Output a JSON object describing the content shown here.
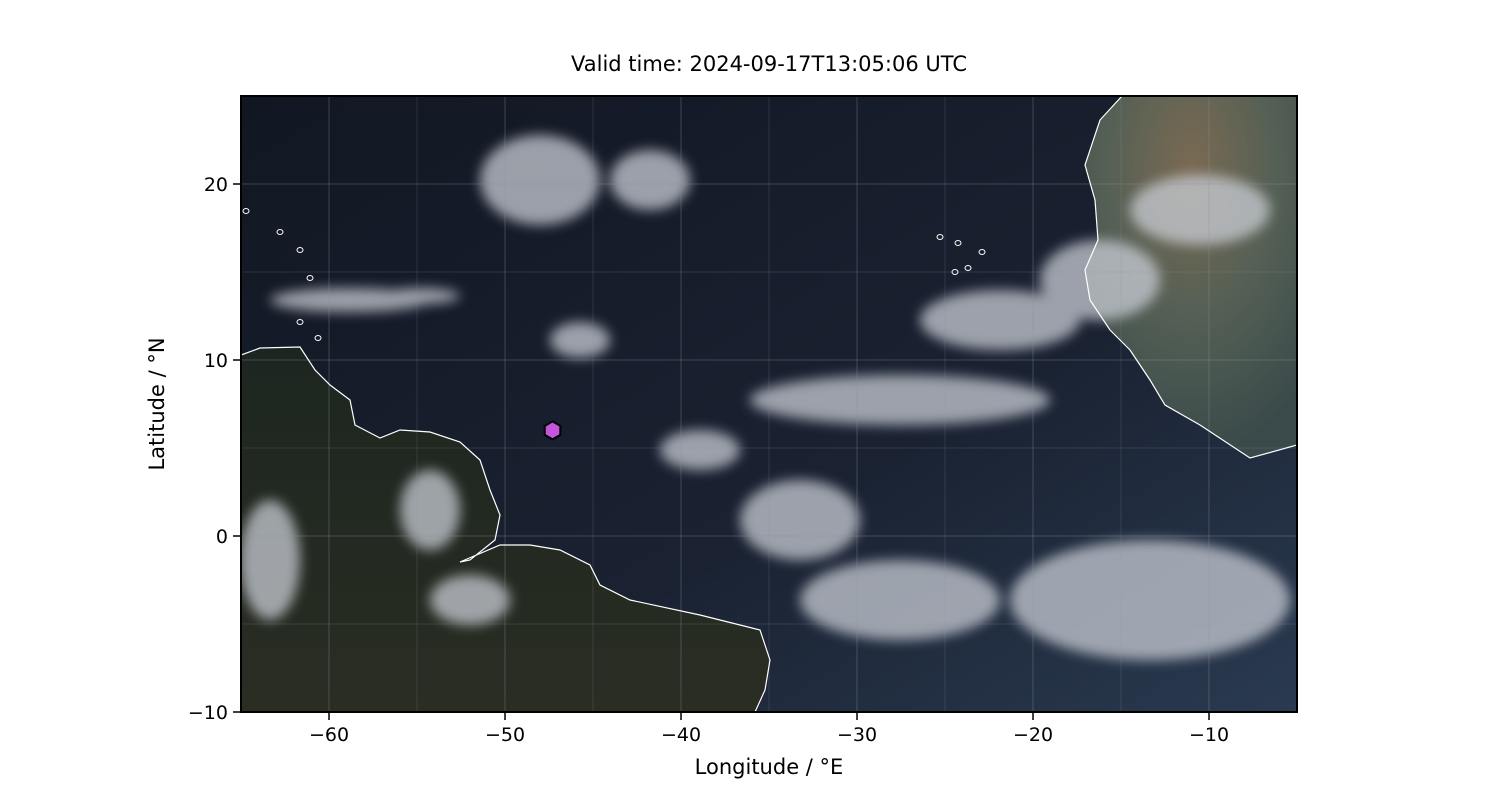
{
  "title": "Valid time: 2024-09-17T13:05:06 UTC",
  "xaxis": {
    "label": "Longitude / °E",
    "range": [
      -65,
      -5
    ],
    "ticks": [
      -60,
      -50,
      -40,
      -30,
      -20,
      -10
    ],
    "tick_labels": [
      "−60",
      "−50",
      "−40",
      "−30",
      "−20",
      "−10"
    ]
  },
  "yaxis": {
    "label": "Latitude / °N",
    "range": [
      -10,
      25
    ],
    "ticks": [
      20,
      10,
      0,
      -10
    ],
    "tick_labels": [
      "20",
      "10",
      "0",
      "−10"
    ]
  },
  "grid": true,
  "background": "true-color satellite imagery",
  "coastline_color": "#ffffff",
  "marker": {
    "shape": "hexagon",
    "color": "#c355dc",
    "lon": -47.3,
    "lat": 6.0
  }
}
